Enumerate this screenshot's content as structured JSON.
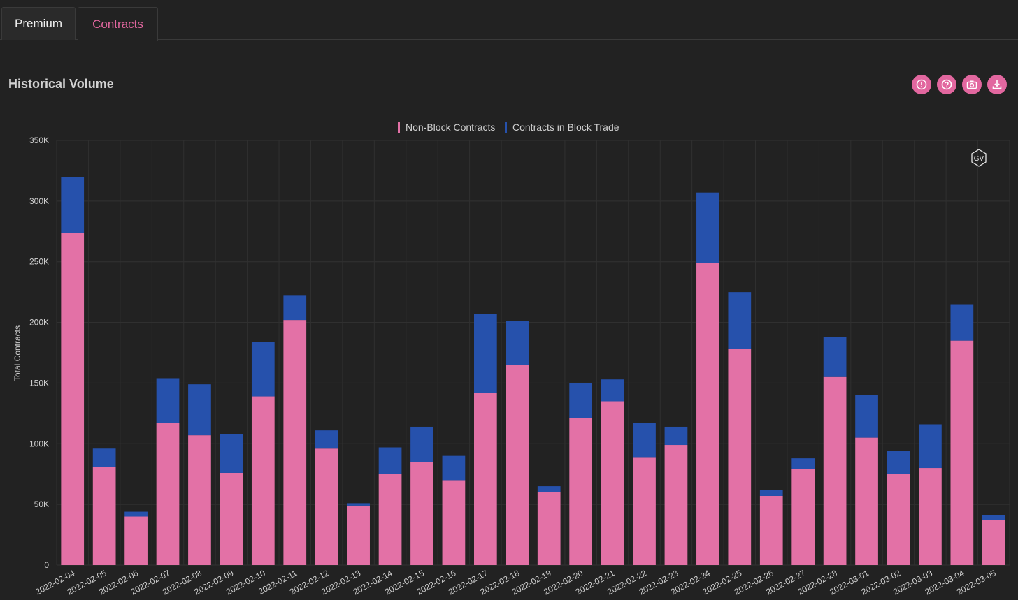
{
  "tabs": [
    {
      "label": "Premium",
      "active": false
    },
    {
      "label": "Contracts",
      "active": true
    }
  ],
  "panel": {
    "title": "Historical Volume",
    "toolbar_icons": [
      "info-icon",
      "help-icon",
      "camera-icon",
      "download-icon"
    ]
  },
  "watermark": "GV",
  "colors": {
    "accent": "#e2679f",
    "non_block": "#e371a6",
    "block": "#2651ac",
    "background": "#222222"
  },
  "chart_data": {
    "type": "bar",
    "stacked": true,
    "ylabel": "Total Contracts",
    "ylim": [
      0,
      350000
    ],
    "yticks": [
      0,
      50000,
      100000,
      150000,
      200000,
      250000,
      300000,
      350000
    ],
    "ytick_labels": [
      "0",
      "50K",
      "100K",
      "150K",
      "200K",
      "250K",
      "300K",
      "350K"
    ],
    "grid": true,
    "legend_position": "top-center",
    "categories": [
      "2022-02-04",
      "2022-02-05",
      "2022-02-06",
      "2022-02-07",
      "2022-02-08",
      "2022-02-09",
      "2022-02-10",
      "2022-02-11",
      "2022-02-12",
      "2022-02-13",
      "2022-02-14",
      "2022-02-15",
      "2022-02-16",
      "2022-02-17",
      "2022-02-18",
      "2022-02-19",
      "2022-02-20",
      "2022-02-21",
      "2022-02-22",
      "2022-02-23",
      "2022-02-24",
      "2022-02-25",
      "2022-02-26",
      "2022-02-27",
      "2022-02-28",
      "2022-03-01",
      "2022-03-02",
      "2022-03-03",
      "2022-03-04",
      "2022-03-05"
    ],
    "series": [
      {
        "name": "Non-Block Contracts",
        "color": "#e371a6",
        "values": [
          274000,
          81000,
          40000,
          117000,
          107000,
          76000,
          139000,
          202000,
          96000,
          49000,
          75000,
          85000,
          70000,
          142000,
          165000,
          60000,
          121000,
          135000,
          89000,
          99000,
          249000,
          178000,
          57000,
          79000,
          155000,
          105000,
          75000,
          80000,
          185000,
          37000
        ]
      },
      {
        "name": "Contracts in Block Trade",
        "color": "#2651ac",
        "values": [
          46000,
          15000,
          4000,
          37000,
          42000,
          32000,
          45000,
          20000,
          15000,
          2000,
          22000,
          29000,
          20000,
          65000,
          36000,
          5000,
          29000,
          18000,
          28000,
          15000,
          58000,
          47000,
          5000,
          9000,
          33000,
          35000,
          19000,
          36000,
          30000,
          4000
        ]
      }
    ]
  }
}
